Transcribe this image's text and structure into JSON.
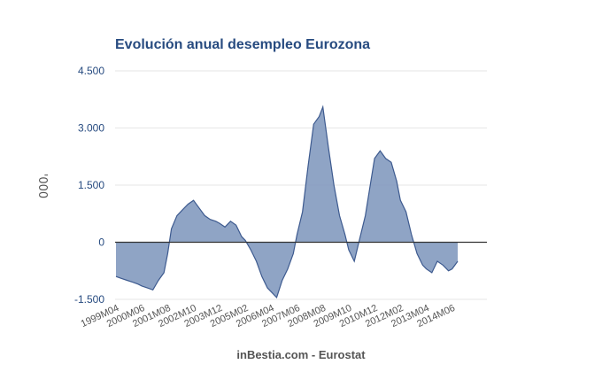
{
  "chart_data": {
    "type": "area",
    "title": "Evolución anual desempleo Eurozona",
    "ylabel": "'000",
    "source": "inBestia.com - Eurostat",
    "ylim": [
      -1500,
      4500
    ],
    "yticks": [
      -1500,
      0,
      1500,
      3000,
      4500
    ],
    "ytick_labels": [
      "-1.500",
      "0",
      "1.500",
      "3.000",
      "4.500"
    ],
    "xtick_labels": [
      "1999M04",
      "2000M06",
      "2001M08",
      "2002M10",
      "2003M12",
      "2005M02",
      "2006M04",
      "2007M06",
      "2008M08",
      "2009M10",
      "2010M12",
      "2012M02",
      "2013M04",
      "2014M06"
    ],
    "grid": true,
    "legend": "none",
    "color": "#7b94bb",
    "line_color": "#3d5a8f",
    "series": [
      {
        "x": [
          "1999M04",
          "1999M07",
          "1999M10",
          "2000M01",
          "2000M04",
          "2000M06",
          "2000M09",
          "2000M12",
          "2001M03",
          "2001M06",
          "2001M08",
          "2001M10",
          "2002M01",
          "2002M04",
          "2002M07",
          "2002M10",
          "2003M01",
          "2003M04",
          "2003M07",
          "2003M10",
          "2003M12",
          "2004M03",
          "2004M06",
          "2004M09",
          "2004M12",
          "2005M02",
          "2005M05",
          "2005M08",
          "2005M11",
          "2006M02",
          "2006M04",
          "2006M07",
          "2006M10",
          "2007M01",
          "2007M04",
          "2007M06",
          "2007M09",
          "2007M12",
          "2008M03",
          "2008M06",
          "2008M08",
          "2008M11",
          "2009M02",
          "2009M05",
          "2009M08",
          "2009M10",
          "2010M01",
          "2010M04",
          "2010M07",
          "2010M10",
          "2010M12",
          "2011M03",
          "2011M06",
          "2011M09",
          "2011M12",
          "2012M02",
          "2012M05",
          "2012M08",
          "2012M11",
          "2013M02",
          "2013M04",
          "2013M07",
          "2013M10",
          "2014M01",
          "2014M04",
          "2014M06",
          "2014M09"
        ],
        "y": [
          -900,
          -950,
          -1000,
          -1050,
          -1100,
          -1150,
          -1200,
          -1250,
          -1000,
          -800,
          -300,
          350,
          700,
          850,
          1000,
          1100,
          900,
          700,
          600,
          550,
          500,
          400,
          550,
          450,
          150,
          50,
          -200,
          -500,
          -900,
          -1200,
          -1300,
          -1450,
          -1000,
          -700,
          -300,
          200,
          800,
          2000,
          3100,
          3300,
          3550,
          2500,
          1500,
          700,
          200,
          -200,
          -500,
          100,
          700,
          1600,
          2200,
          2400,
          2200,
          2100,
          1600,
          1100,
          800,
          200,
          -300,
          -600,
          -700,
          -800,
          -500,
          -600,
          -750,
          -700,
          -500
        ]
      }
    ]
  }
}
